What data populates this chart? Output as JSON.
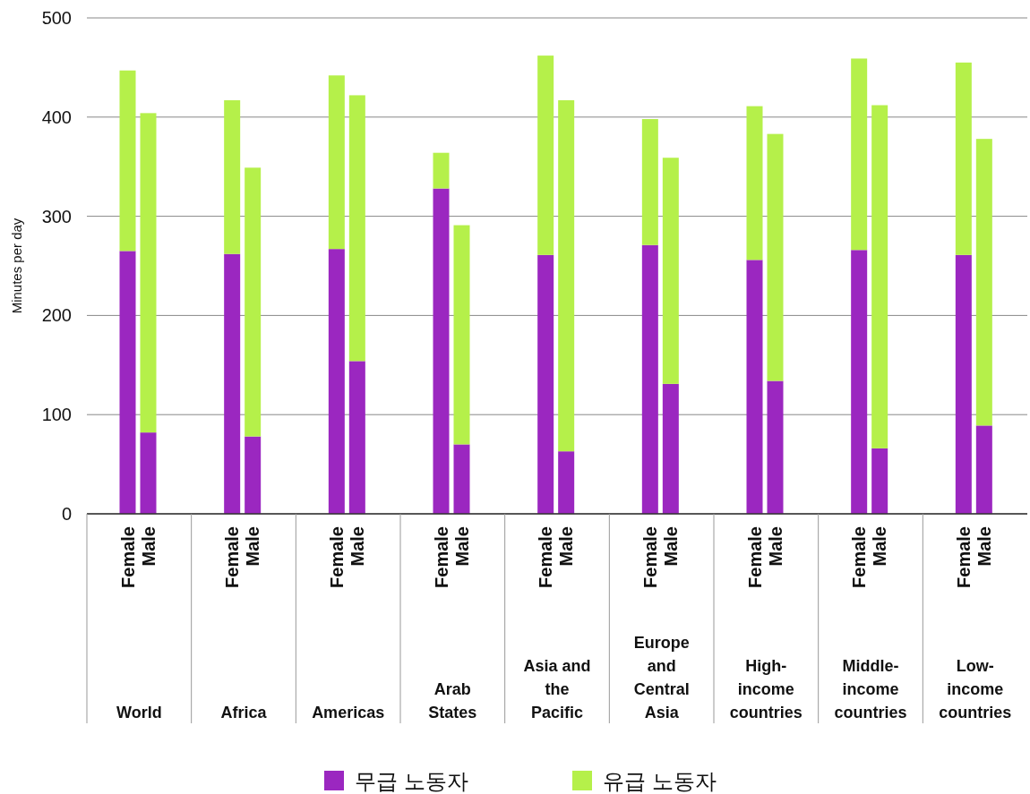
{
  "chart_data": {
    "type": "bar",
    "stacked": true,
    "ylabel": "Minutes per day",
    "categories": [
      "Female",
      "Male",
      "Female",
      "Male",
      "Female",
      "Male",
      "Female",
      "Male",
      "Female",
      "Male",
      "Female",
      "Male",
      "Female",
      "Male",
      "Female",
      "Male",
      "Female",
      "Male"
    ],
    "annotations": [
      "World",
      "Africa",
      "Americas",
      "Arab States",
      "Asia and the Pacific",
      "Europe and Central Asia",
      "High-income countries",
      "Middle-income countries",
      "Low-income countries"
    ],
    "series": [
      {
        "name": "무급 노동자",
        "color": "#9b27c0",
        "values": [
          265,
          82,
          262,
          78,
          267,
          154,
          328,
          70,
          261,
          63,
          271,
          131,
          256,
          134,
          266,
          66,
          261,
          89
        ]
      },
      {
        "name": "유급 노동자",
        "color": "#b5f04a",
        "values": [
          182,
          322,
          155,
          271,
          175,
          268,
          36,
          221,
          201,
          354,
          127,
          228,
          155,
          249,
          193,
          346,
          194,
          289
        ]
      }
    ],
    "ylim": [
      0,
      500
    ],
    "yticks": [
      0,
      100,
      200,
      300,
      400,
      500
    ],
    "grid": "y",
    "legend": "bottom"
  }
}
